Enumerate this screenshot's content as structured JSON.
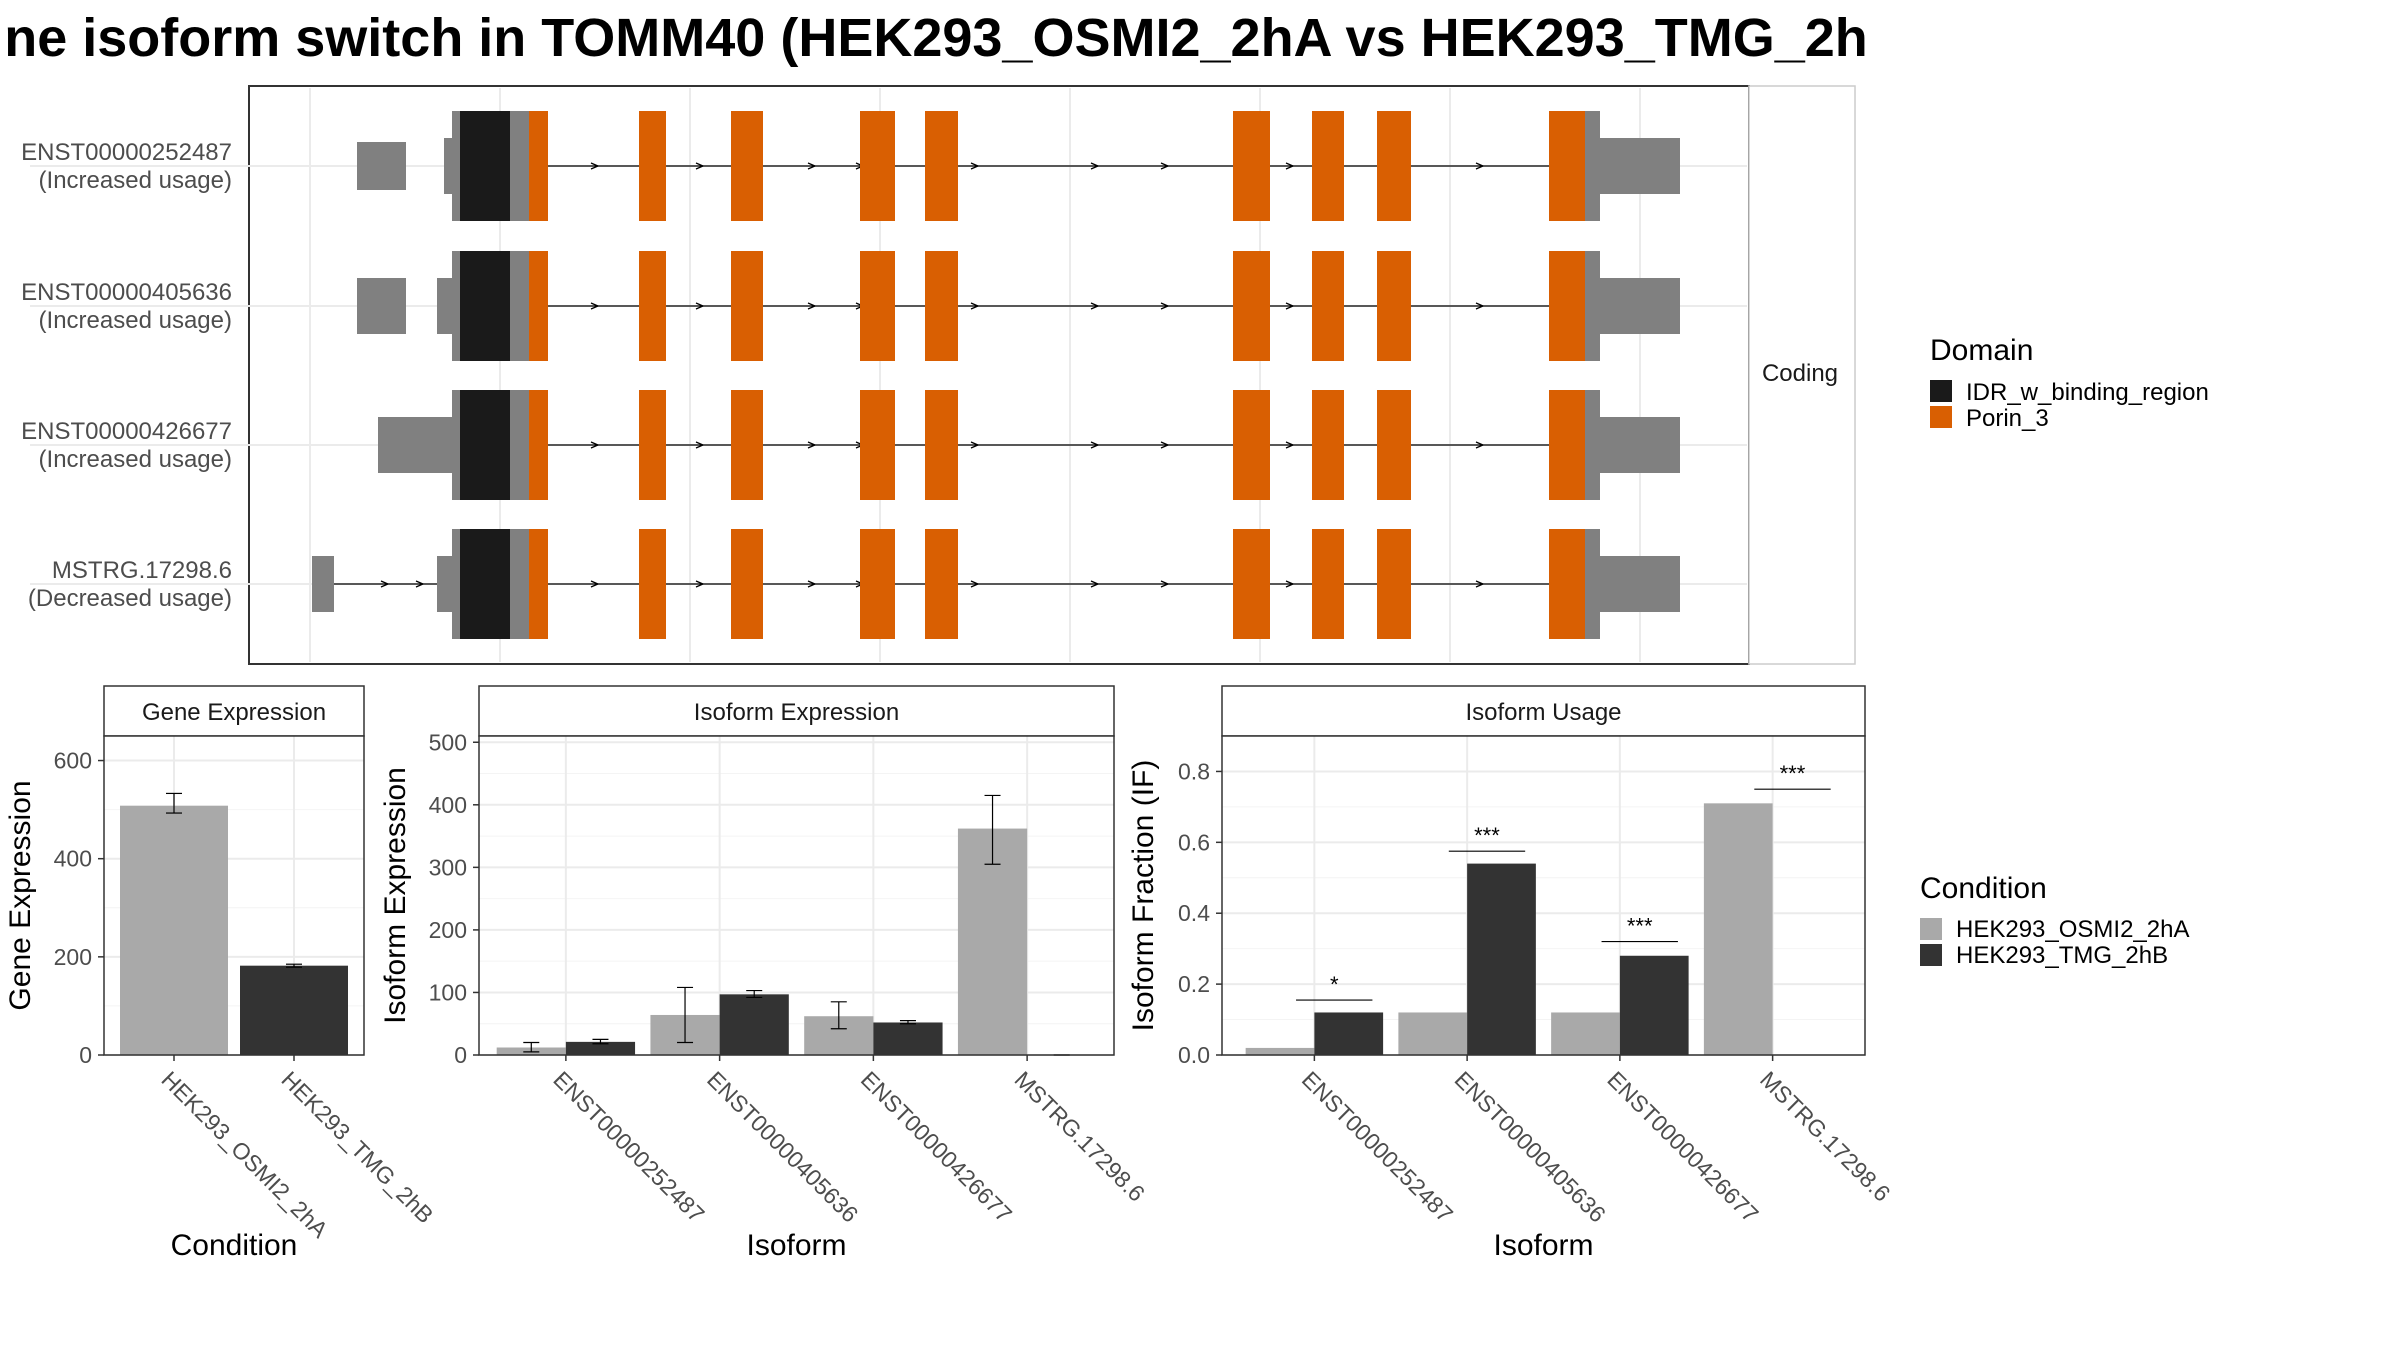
{
  "title": "ne isoform switch in TOMM40 (HEK293_OSMI2_2hA vs HEK293_TMG_2h",
  "colors": {
    "utr": "#808080",
    "idr": "#1a1a1a",
    "porin": "#d95f02",
    "osmi": "#a9a9a9",
    "tmg": "#333333",
    "strip": "#f2f2f2",
    "grid": "#ebebeb"
  },
  "structure": {
    "facet_label": "Coding",
    "transcripts": [
      {
        "id": "ENST00000252487",
        "status": "(Increased usage)"
      },
      {
        "id": "ENST00000405636",
        "status": "(Increased usage)"
      },
      {
        "id": "ENST00000426677",
        "status": "(Increased usage)"
      },
      {
        "id": "MSTRG.17298.6",
        "status": "(Decreased usage)"
      }
    ],
    "legend": {
      "title": "Domain",
      "items": [
        {
          "label": "IDR_w_binding_region",
          "color": "#1a1a1a"
        },
        {
          "label": "Porin_3",
          "color": "#d95f02"
        }
      ]
    }
  },
  "condition_legend": {
    "title": "Condition",
    "items": [
      {
        "label": "HEK293_OSMI2_2hA",
        "color": "#a9a9a9"
      },
      {
        "label": "HEK293_TMG_2hB",
        "color": "#333333"
      }
    ]
  },
  "chart_data": [
    {
      "type": "bar",
      "title": "Gene Expression",
      "xlabel": "Condition",
      "ylabel": "Gene Expression",
      "ylim": [
        0,
        650
      ],
      "yticks": [
        0,
        200,
        400,
        600
      ],
      "categories": [
        "HEK293_OSMI2_2hA",
        "HEK293_TMG_2hB"
      ],
      "values": [
        508,
        182
      ],
      "errors": [
        [
          493,
          533
        ],
        [
          179,
          185
        ]
      ]
    },
    {
      "type": "bar",
      "title": "Isoform Expression",
      "xlabel": "Isoform",
      "ylabel": "Isoform Expression",
      "ylim": [
        0,
        510
      ],
      "yticks": [
        0,
        100,
        200,
        300,
        400,
        500
      ],
      "categories": [
        "ENST00000252487",
        "ENST00000405636",
        "ENST00000426677",
        "MSTRG.17298.6"
      ],
      "series": [
        {
          "name": "HEK293_OSMI2_2hA",
          "values": [
            12,
            64,
            62,
            362
          ],
          "errors": [
            [
              5,
              20
            ],
            [
              20,
              108
            ],
            [
              42,
              85
            ],
            [
              305,
              415
            ]
          ]
        },
        {
          "name": "HEK293_TMG_2hB",
          "values": [
            21,
            97,
            52,
            0
          ],
          "errors": [
            [
              18,
              25
            ],
            [
              92,
              103
            ],
            [
              50,
              55
            ],
            [
              0,
              0
            ]
          ]
        }
      ]
    },
    {
      "type": "bar",
      "title": "Isoform Usage",
      "xlabel": "Isoform",
      "ylabel": "Isoform Fraction (IF)",
      "ylim": [
        0,
        0.9
      ],
      "yticks": [
        0.0,
        0.2,
        0.4,
        0.6,
        0.8
      ],
      "categories": [
        "ENST00000252487",
        "ENST00000405636",
        "ENST00000426677",
        "MSTRG.17298.6"
      ],
      "series": [
        {
          "name": "HEK293_OSMI2_2hA",
          "values": [
            0.02,
            0.12,
            0.12,
            0.71
          ]
        },
        {
          "name": "HEK293_TMG_2hB",
          "values": [
            0.12,
            0.54,
            0.28,
            0.0
          ]
        }
      ],
      "significance": [
        "*",
        "***",
        "***",
        "***"
      ],
      "significance_y": [
        0.155,
        0.575,
        0.32,
        0.75
      ]
    }
  ]
}
